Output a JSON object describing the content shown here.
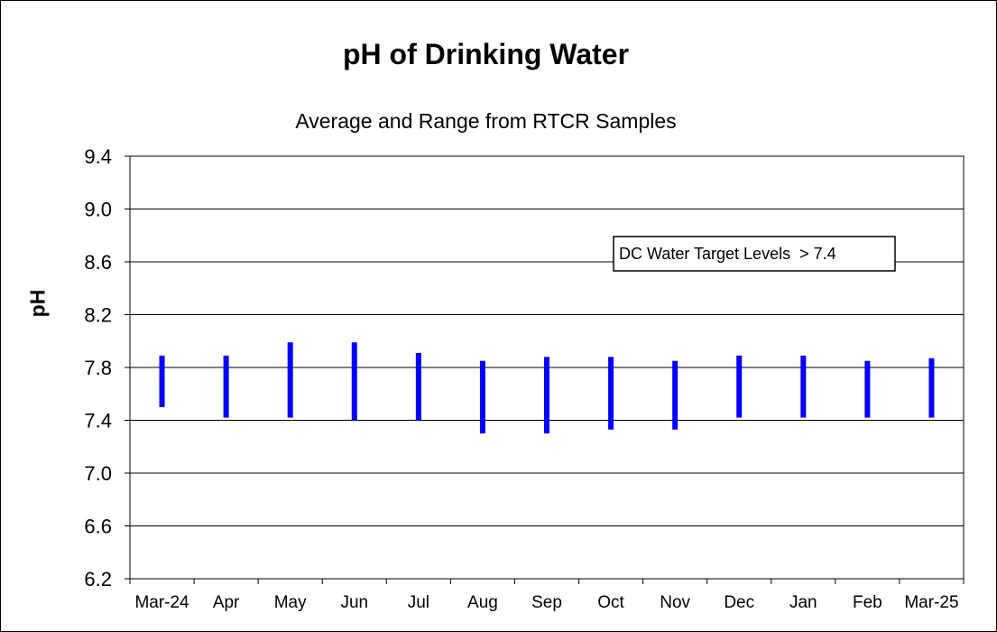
{
  "chart_data": {
    "type": "range",
    "title": "pH of Drinking Water",
    "subtitle": "Average and Range from RTCR Samples",
    "xlabel": "",
    "ylabel": "pH",
    "ylim": [
      6.2,
      9.4
    ],
    "yticks": [
      "6.2",
      "6.6",
      "7.0",
      "7.4",
      "7.8",
      "8.2",
      "8.6",
      "9.0",
      "9.4"
    ],
    "grid": true,
    "categories": [
      "Mar-24",
      "Apr",
      "May",
      "Jun",
      "Jul",
      "Aug",
      "Sep",
      "Oct",
      "Nov",
      "Dec",
      "Jan",
      "Feb",
      "Mar-25"
    ],
    "series": [
      {
        "low": [
          7.5,
          7.42,
          7.42,
          7.4,
          7.4,
          7.3,
          7.3,
          7.33,
          7.33,
          7.42,
          7.42,
          7.42,
          7.42
        ],
        "high": [
          7.89,
          7.89,
          7.99,
          7.99,
          7.91,
          7.85,
          7.88,
          7.88,
          7.85,
          7.89,
          7.89,
          7.85,
          7.87
        ]
      }
    ],
    "bar_color": "#0000ff",
    "annotation": "DC Water Target Levels  > 7.4"
  }
}
